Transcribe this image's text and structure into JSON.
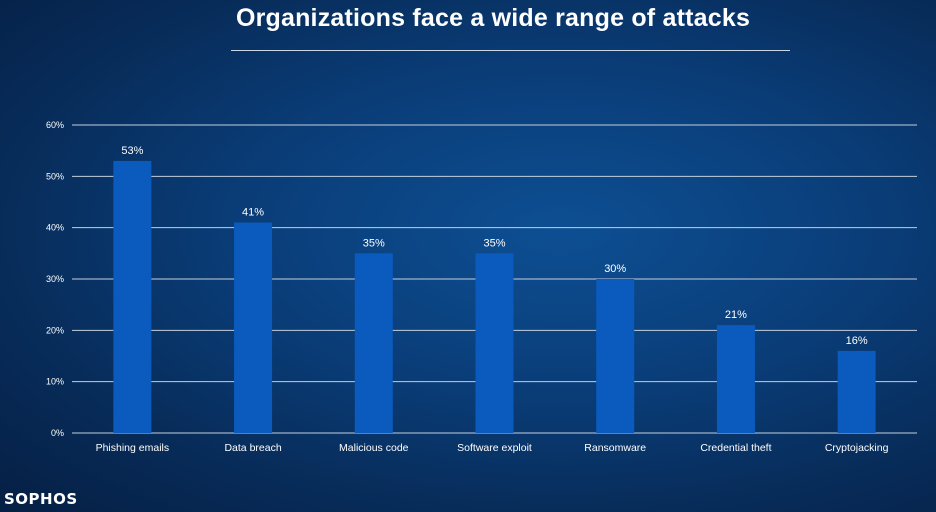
{
  "brand": "SOPHOS",
  "chart_data": {
    "type": "bar",
    "title": "Organizations face a wide range of attacks",
    "categories": [
      "Phishing emails",
      "Data breach",
      "Malicious code",
      "Software exploit",
      "Ransomware",
      "Credential theft",
      "Cryptojacking"
    ],
    "values": [
      53,
      41,
      35,
      35,
      30,
      21,
      16
    ],
    "value_labels": [
      "53%",
      "41%",
      "35%",
      "35%",
      "30%",
      "21%",
      "16%"
    ],
    "ylim": [
      0,
      60
    ],
    "yticks": [
      0,
      10,
      20,
      30,
      40,
      50,
      60
    ],
    "ytick_labels": [
      "0%",
      "10%",
      "20%",
      "30%",
      "40%",
      "50%",
      "60%"
    ],
    "grid": true,
    "legend": "none",
    "colors": {
      "bar": "#0a5bbd",
      "grid": "#c3cfdc",
      "text": "#ffffff"
    }
  }
}
